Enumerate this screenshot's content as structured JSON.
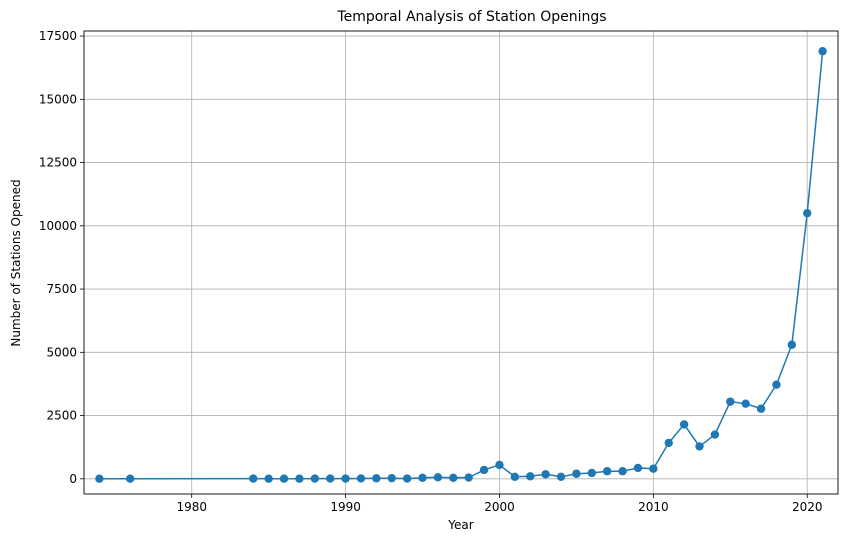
{
  "chart_data": {
    "type": "line",
    "title": "Temporal Analysis of Station Openings",
    "xlabel": "Year",
    "ylabel": "Number of Stations Opened",
    "xlim": [
      1973,
      2022
    ],
    "ylim": [
      -600,
      17700
    ],
    "xticks": [
      1980,
      1990,
      2000,
      2010,
      2020
    ],
    "yticks": [
      0,
      2500,
      5000,
      7500,
      10000,
      12500,
      15000,
      17500
    ],
    "grid": true,
    "color": "#1f77b4",
    "series": [
      {
        "marker": "circle",
        "x": [
          1974,
          1976,
          1984,
          1985,
          1986,
          1987,
          1988,
          1989,
          1990,
          1991,
          1992,
          1993,
          1994,
          1995,
          1996,
          1997,
          1998,
          1999,
          2000,
          2001,
          2002,
          2003,
          2004,
          2005,
          2006,
          2007,
          2008,
          2009,
          2010,
          2011,
          2012,
          2013,
          2014,
          2015,
          2016,
          2017,
          2018,
          2019,
          2020,
          2021
        ],
        "y": [
          5,
          5,
          10,
          5,
          5,
          5,
          10,
          10,
          10,
          15,
          20,
          25,
          10,
          40,
          60,
          40,
          50,
          350,
          550,
          80,
          100,
          180,
          80,
          200,
          230,
          300,
          300,
          430,
          400,
          1420,
          2150,
          1280,
          1750,
          3050,
          2970,
          2770,
          3720,
          5300,
          10500,
          16900
        ]
      }
    ]
  }
}
